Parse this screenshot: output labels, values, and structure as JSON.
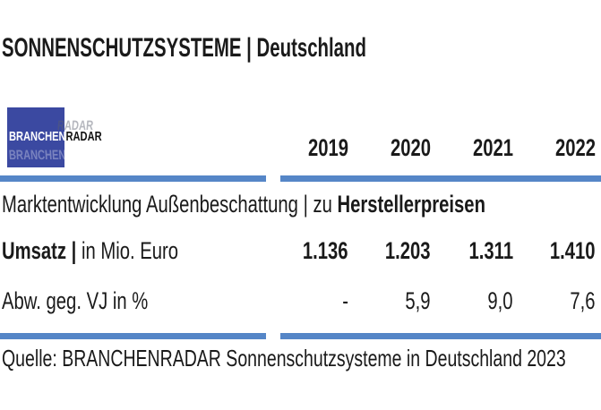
{
  "header": {
    "title": "SONNENSCHUTZSYSTEME | Deutschland"
  },
  "logo": {
    "branchen": "BRANCHEN",
    "radar": "RADAR"
  },
  "table": {
    "years": [
      "2019",
      "2020",
      "2021",
      "2022"
    ],
    "section": {
      "regular": "Marktentwicklung Außenbeschattung | zu ",
      "bold": "Herstellerpreisen"
    },
    "rows": [
      {
        "label_bold": "Umsatz |",
        "label_regular": " in Mio. Euro",
        "values": [
          "1.136",
          "1.203",
          "1.311",
          "1.410"
        ]
      },
      {
        "label_bold": "",
        "label_regular": "Abw. geg. VJ in %",
        "values": [
          "-",
          "5,9",
          "9,0",
          "7,6"
        ]
      }
    ]
  },
  "source": {
    "text": "Quelle: BRANCHENRADAR Sonnenschutzsysteme in Deutschland 2023"
  },
  "colors": {
    "accent_bar": "#5586C7",
    "logo_blue": "#3B49A1",
    "text": "#1A1A1A"
  },
  "chart_data": {
    "type": "table",
    "title": "SONNENSCHUTZSYSTEME | Deutschland",
    "subtitle": "Marktentwicklung Außenbeschattung | zu Herstellerpreisen",
    "columns": [
      "2019",
      "2020",
      "2021",
      "2022"
    ],
    "rows": [
      {
        "label": "Umsatz | in Mio. Euro",
        "values": [
          1136,
          1203,
          1311,
          1410
        ]
      },
      {
        "label": "Abw. geg. VJ in %",
        "values": [
          null,
          5.9,
          9.0,
          7.6
        ]
      }
    ],
    "source": "Quelle: BRANCHENRADAR Sonnenschutzsysteme in Deutschland 2023"
  }
}
